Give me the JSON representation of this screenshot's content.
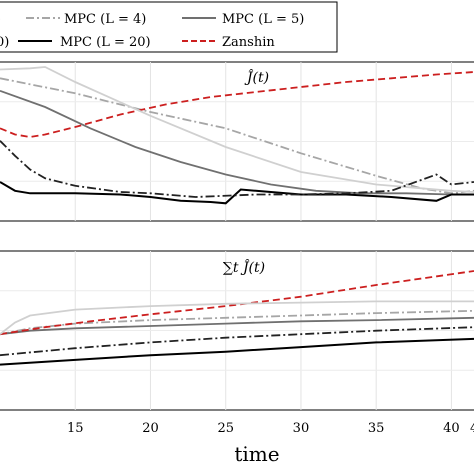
{
  "chart_data": [
    {
      "type": "line",
      "title": "Ĵ(t)",
      "xlabel": "time",
      "ylabel": "",
      "xlim": [
        10,
        41.5
      ],
      "ylim": [
        0,
        1
      ],
      "grid": true,
      "legend_position": "top",
      "xticks": [
        "15",
        "20",
        "25",
        "30",
        "35",
        "40",
        "4"
      ],
      "series": [
        {
          "name": "MPC (L = 4)",
          "color": "#a6a6a6",
          "dash": "dashdot",
          "x": [
            10,
            15,
            20,
            25,
            30,
            35,
            38,
            40,
            41.5
          ],
          "y": [
            0.95,
            0.83,
            0.68,
            0.55,
            0.35,
            0.17,
            0.07,
            0.03,
            0.05
          ]
        },
        {
          "name": "MPC (L = 5)",
          "color": "#707070",
          "dash": "solid",
          "x": [
            10,
            13,
            16,
            19,
            22,
            25,
            28,
            31,
            34,
            37,
            40,
            41.5
          ],
          "y": [
            0.85,
            0.72,
            0.55,
            0.4,
            0.28,
            0.18,
            0.1,
            0.05,
            0.03,
            0.03,
            0.02,
            0.02
          ]
        },
        {
          "name": "MPC (L = 20)",
          "color": "#000000",
          "dash": "solid",
          "x": [
            10,
            11,
            12,
            15,
            18,
            20,
            22,
            24,
            25,
            26,
            27,
            30,
            33,
            36,
            39,
            40,
            41.5
          ],
          "y": [
            0.12,
            0.05,
            0.03,
            0.03,
            0.02,
            0.0,
            -0.03,
            -0.04,
            -0.05,
            0.06,
            0.05,
            0.02,
            0.02,
            0.0,
            -0.03,
            0.02,
            0.02
          ]
        },
        {
          "name": "Zanshin",
          "color": "#cc1f1f",
          "dash": "dashed",
          "x": [
            10,
            11,
            12,
            13,
            15,
            18,
            21,
            24,
            27,
            30,
            33,
            36,
            39,
            41.5
          ],
          "y": [
            0.55,
            0.5,
            0.48,
            0.5,
            0.56,
            0.66,
            0.74,
            0.8,
            0.84,
            0.88,
            0.92,
            0.95,
            0.98,
            1.0
          ]
        },
        {
          "name": "",
          "color": "#d0d0d0",
          "dash": "solid",
          "x": [
            10,
            12,
            13,
            15,
            20,
            25,
            30,
            35,
            38,
            40,
            41.5
          ],
          "y": [
            1.02,
            1.03,
            1.04,
            0.92,
            0.65,
            0.4,
            0.2,
            0.1,
            0.07,
            0.05,
            0.04
          ]
        },
        {
          "name": "",
          "color": "#222222",
          "dash": "dashdot",
          "x": [
            10,
            11,
            12,
            13,
            15,
            18,
            20,
            23,
            27,
            30,
            33,
            36,
            39,
            40,
            41.5
          ],
          "y": [
            0.45,
            0.33,
            0.22,
            0.15,
            0.09,
            0.04,
            0.03,
            0.0,
            0.02,
            0.02,
            0.03,
            0.05,
            0.18,
            0.1,
            0.12
          ]
        }
      ]
    },
    {
      "type": "line",
      "title": "∑t Ĵ(t)",
      "xlabel": "time",
      "ylabel": "",
      "xlim": [
        10,
        41.5
      ],
      "ylim": [
        0,
        1
      ],
      "grid": true,
      "xticks": [
        "15",
        "20",
        "25",
        "30",
        "35",
        "40",
        "4"
      ],
      "series": [
        {
          "name": "MPC (L = 4)",
          "color": "#a6a6a6",
          "dash": "dashdot",
          "x": [
            10,
            12,
            15,
            20,
            25,
            30,
            35,
            41.5
          ],
          "y": [
            0.46,
            0.51,
            0.55,
            0.58,
            0.6,
            0.62,
            0.64,
            0.66
          ]
        },
        {
          "name": "MPC (L = 5)",
          "color": "#707070",
          "dash": "solid",
          "x": [
            10,
            12,
            15,
            20,
            25,
            30,
            35,
            41.5
          ],
          "y": [
            0.46,
            0.49,
            0.51,
            0.53,
            0.55,
            0.57,
            0.58,
            0.6
          ]
        },
        {
          "name": "MPC (L = 20)",
          "color": "#000000",
          "dash": "solid",
          "x": [
            10,
            15,
            20,
            25,
            30,
            35,
            41.5
          ],
          "y": [
            0.2,
            0.24,
            0.28,
            0.31,
            0.35,
            0.39,
            0.42
          ]
        },
        {
          "name": "Zanshin",
          "color": "#cc1f1f",
          "dash": "dashed",
          "x": [
            10,
            13,
            16,
            20,
            25,
            30,
            35,
            41.5
          ],
          "y": [
            0.46,
            0.52,
            0.57,
            0.63,
            0.7,
            0.78,
            0.88,
            1.0
          ]
        },
        {
          "name": "",
          "color": "#d0d0d0",
          "dash": "solid",
          "x": [
            10,
            11,
            12,
            15,
            20,
            25,
            30,
            35,
            41.5
          ],
          "y": [
            0.46,
            0.56,
            0.62,
            0.67,
            0.7,
            0.72,
            0.73,
            0.74,
            0.74
          ]
        },
        {
          "name": "",
          "color": "#222222",
          "dash": "dashdot",
          "x": [
            10,
            15,
            20,
            25,
            30,
            35,
            41.5
          ],
          "y": [
            0.28,
            0.34,
            0.39,
            0.43,
            0.46,
            0.49,
            0.52
          ]
        }
      ]
    }
  ],
  "legend": {
    "items": [
      {
        "label": "MPC (L = 4)",
        "color": "#a6a6a6",
        "dash": "dashdot"
      },
      {
        "label": "MPC (L = 5)",
        "color": "#707070",
        "dash": "solid"
      },
      {
        "label": "MPC (L = 20)",
        "color": "#000000",
        "dash": "solid"
      },
      {
        "label": "Zanshin",
        "color": "#cc1f1f",
        "dash": "dashed"
      }
    ],
    "partial_left_row1": ")",
    "partial_left_row2": "0)"
  }
}
